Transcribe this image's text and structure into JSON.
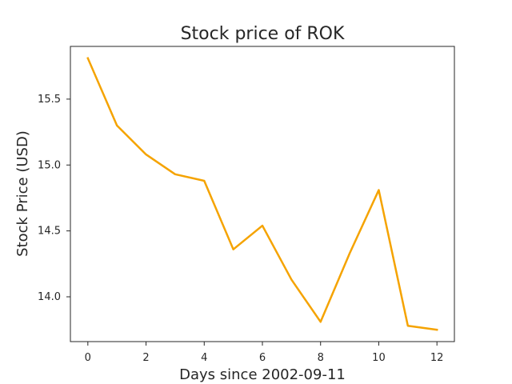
{
  "chart_data": {
    "type": "line",
    "title": "Stock price of ROK",
    "xlabel": "Days since 2002-09-11",
    "ylabel": "Stock Price (USD)",
    "x": [
      0,
      1,
      2,
      3,
      4,
      5,
      6,
      7,
      8,
      9,
      10,
      11,
      12
    ],
    "series": [
      {
        "values": [
          15.81,
          15.3,
          15.08,
          14.93,
          14.88,
          14.36,
          14.54,
          14.13,
          13.81,
          14.33,
          14.81,
          13.78,
          13.75
        ],
        "color": "#f5a300"
      }
    ],
    "xlim": [
      -0.6,
      12.6
    ],
    "ylim": [
      13.66,
      15.9
    ],
    "xticks": [
      0,
      2,
      4,
      6,
      8,
      10,
      12
    ],
    "xtick_labels": [
      "0",
      "2",
      "4",
      "6",
      "8",
      "10",
      "12"
    ],
    "yticks": [
      14.0,
      14.5,
      15.0,
      15.5
    ],
    "ytick_labels": [
      "14.0",
      "14.5",
      "15.0",
      "15.5"
    ],
    "grid": false,
    "legend": "none"
  }
}
